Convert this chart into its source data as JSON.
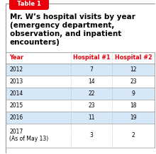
{
  "table_label": "Table 1",
  "title": "Mr. W’s hospital visits by year\n(emergency department,\nobservation, and inpatient\nencounters)",
  "col_headers": [
    "Year",
    "Hospital #1",
    "Hospital #2"
  ],
  "rows": [
    [
      "2012",
      "7",
      "12"
    ],
    [
      "2013",
      "14",
      "23"
    ],
    [
      "2014",
      "22",
      "9"
    ],
    [
      "2015",
      "23",
      "18"
    ],
    [
      "2016",
      "11",
      "19"
    ],
    [
      "2017\n(As of May 13)",
      "3",
      "2"
    ]
  ],
  "header_color": "#e8000d",
  "label_bg": "#e8000d",
  "label_text": "Table 1",
  "label_text_color": "#ffffff",
  "row_alt_color": "#d6e8f7",
  "row_white_color": "#ffffff",
  "border_color": "#999999",
  "col_divider_color": "#aaaaaa",
  "title_color": "#000000",
  "data_color": "#000000",
  "background": "#ffffff"
}
